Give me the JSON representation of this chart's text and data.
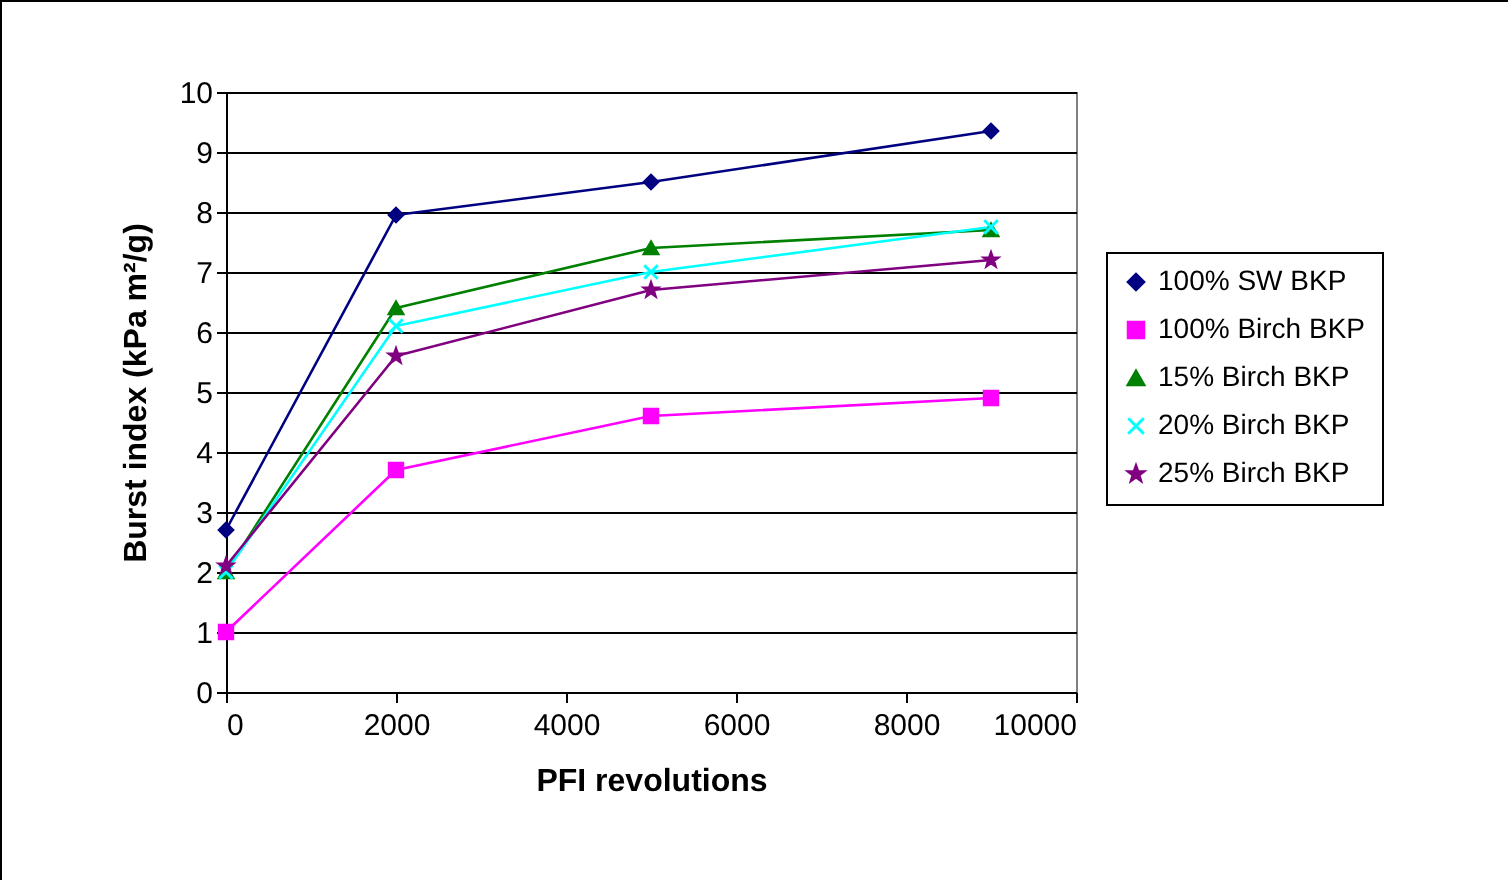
{
  "chart_data": {
    "type": "line",
    "xlabel": "PFI revolutions",
    "ylabel": "Burst index (kPa m²/g)",
    "x": [
      0,
      2000,
      5000,
      9000
    ],
    "xlim": [
      0,
      10000
    ],
    "xticks": [
      0,
      2000,
      4000,
      6000,
      8000,
      10000
    ],
    "ylim": [
      0,
      10
    ],
    "yticks": [
      0,
      1,
      2,
      3,
      4,
      5,
      6,
      7,
      8,
      9,
      10
    ],
    "grid": "y",
    "legend": "right",
    "series": [
      {
        "name": "100% SW BKP",
        "color": "#000080",
        "marker": "diamond",
        "values": [
          2.7,
          7.95,
          8.5,
          9.35
        ]
      },
      {
        "name": "100% Birch BKP",
        "color": "#ff00ff",
        "marker": "square",
        "values": [
          1.0,
          3.7,
          4.6,
          4.9
        ]
      },
      {
        "name": "15% Birch BKP",
        "color": "#008000",
        "marker": "triangle",
        "values": [
          2.0,
          6.4,
          7.4,
          7.7
        ]
      },
      {
        "name": "20% Birch BKP",
        "color": "#00ffff",
        "marker": "cross",
        "values": [
          2.0,
          6.1,
          7.0,
          7.75
        ]
      },
      {
        "name": "25% Birch BKP",
        "color": "#800080",
        "marker": "star",
        "values": [
          2.1,
          5.6,
          6.7,
          7.2
        ]
      }
    ]
  }
}
